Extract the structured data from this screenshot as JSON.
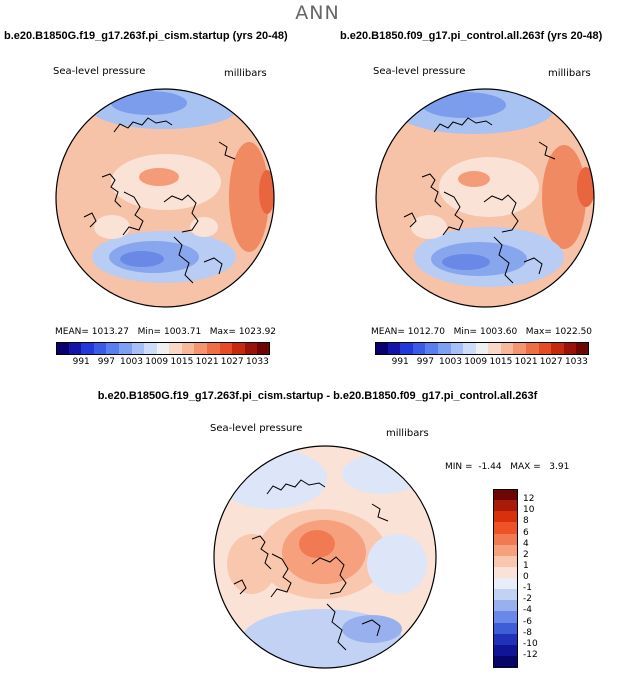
{
  "figure": {
    "season": "ANN",
    "diff_title": "b.e20.B1850G.f19_g17.263f.pi_cism.startup - b.e20.B1850.f09_g17.pi_control.all.263f"
  },
  "panels": [
    {
      "title": "b.e20.B1850G.f19_g17.263f.pi_cism.startup (yrs 20-48)",
      "variable": "Sea-level pressure",
      "units": "millibars",
      "mean_label": "MEAN=",
      "mean": "1013.27",
      "min_label": "Min=",
      "min": "1003.71",
      "max_label": "Max=",
      "max": "1023.92"
    },
    {
      "title": "b.e20.B1850.f09_g17.pi_control.all.263f (yrs 20-48)",
      "variable": "Sea-level pressure",
      "units": "millibars",
      "mean_label": "MEAN=",
      "mean": "1012.70",
      "min_label": "Min=",
      "min": "1003.60",
      "max_label": "Max=",
      "max": "1022.50"
    }
  ],
  "diff_panel": {
    "variable": "Sea-level pressure",
    "units": "millibars",
    "min_label": "MIN =",
    "min": "-1.44",
    "max_label": "MAX =",
    "max": "3.91"
  },
  "colorbar_abs": {
    "labels": [
      "991",
      "997",
      "1003",
      "1009",
      "1015",
      "1021",
      "1027",
      "1033"
    ],
    "colors": [
      "#08006e",
      "#1414aa",
      "#2238d8",
      "#3a5ae8",
      "#5a7ef0",
      "#7ea0f4",
      "#a6c0f7",
      "#cddcf9",
      "#eef0f2",
      "#fad8c8",
      "#f8b89a",
      "#f49470",
      "#ee6e46",
      "#e44c26",
      "#c62a0e",
      "#9a1208",
      "#6e0606"
    ]
  },
  "colorbar_diff": {
    "labels": [
      "12",
      "10",
      "8",
      "6",
      "4",
      "2",
      "1",
      "0",
      "-1",
      "-2",
      "-4",
      "-6",
      "-8",
      "-10",
      "-12"
    ],
    "colors": [
      "#6e0606",
      "#a81a0a",
      "#d8300e",
      "#ee5226",
      "#f27a52",
      "#f6a07e",
      "#f9c6ae",
      "#fbe2d6",
      "#e8eef8",
      "#c2d2f4",
      "#98b0ee",
      "#6a88e8",
      "#3e5ed8",
      "#2232b8",
      "#101496",
      "#06066a"
    ]
  }
}
